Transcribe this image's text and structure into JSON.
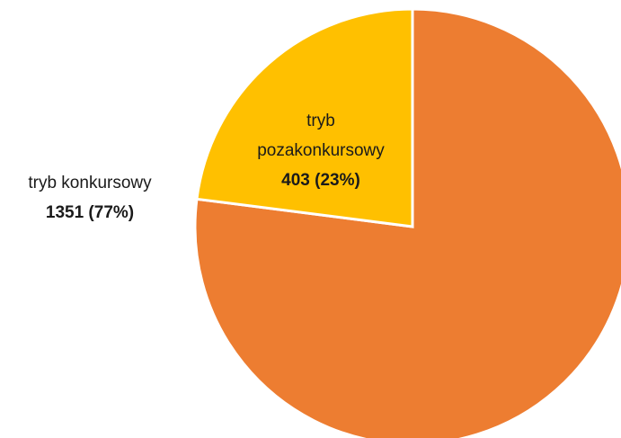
{
  "chart_data": {
    "type": "pie",
    "categories": [
      "tryb konkursowy",
      "tryb pozakonkursowy"
    ],
    "values": [
      1351,
      403
    ],
    "value_labels": [
      "1351 (77%)",
      "403 (23%)"
    ],
    "colors": [
      "#ED7D31",
      "#FFC000"
    ]
  }
}
